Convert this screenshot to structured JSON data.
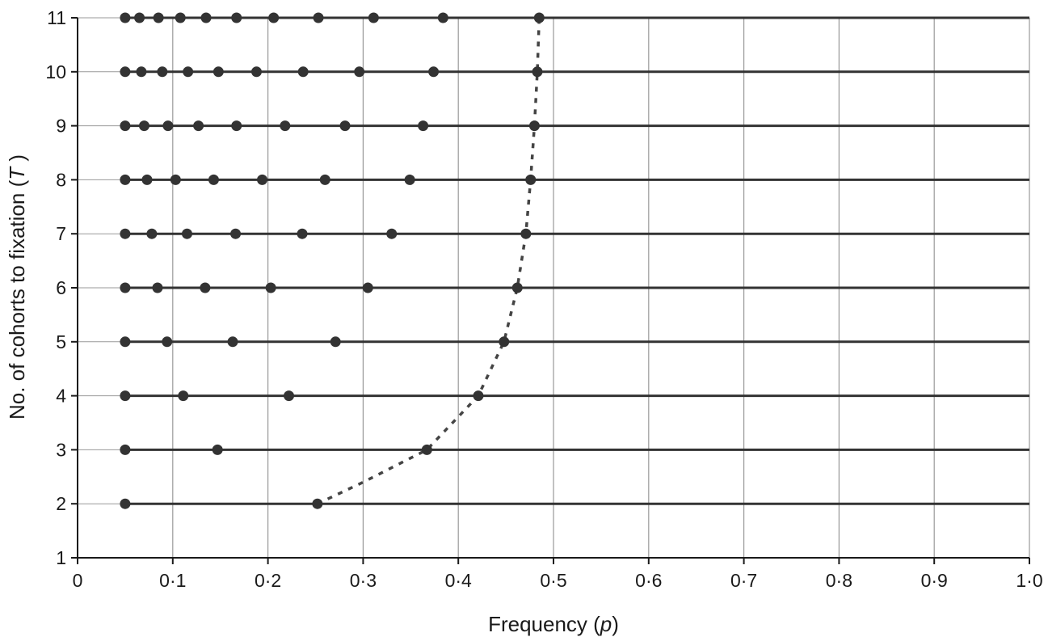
{
  "chart_data": {
    "type": "scatter",
    "xlabel": {
      "pre": "Frequency (",
      "ital": "p",
      "post": ")"
    },
    "ylabel": {
      "pre": "No. of cohorts to fixation (",
      "ital": "T",
      "post": " )"
    },
    "xlim": [
      0,
      1.0
    ],
    "ylim": [
      1,
      11
    ],
    "x_ticks": [
      0,
      0.1,
      0.2,
      0.3,
      0.4,
      0.5,
      0.6,
      0.7,
      0.8,
      0.9,
      1.0
    ],
    "x_tick_labels": [
      "0",
      "0·1",
      "0·2",
      "0·3",
      "0·4",
      "0·5",
      "0·6",
      "0·7",
      "0·8",
      "0·9",
      "1·0"
    ],
    "y_ticks": [
      1,
      2,
      3,
      4,
      5,
      6,
      7,
      8,
      9,
      10,
      11
    ],
    "y_tick_labels": [
      "1",
      "2",
      "3",
      "4",
      "5",
      "6",
      "7",
      "8",
      "9",
      "10",
      "11"
    ],
    "grid": "vertical",
    "horizontal_lines": {
      "from_x": 0.05,
      "to_x": 1.0,
      "levels": [
        2,
        3,
        4,
        5,
        6,
        7,
        8,
        9,
        10,
        11
      ]
    },
    "rows": [
      {
        "T": 2,
        "points": [
          0.05,
          0.252
        ]
      },
      {
        "T": 3,
        "points": [
          0.05,
          0.147,
          0.367
        ]
      },
      {
        "T": 4,
        "points": [
          0.05,
          0.111,
          0.222,
          0.421
        ]
      },
      {
        "T": 5,
        "points": [
          0.05,
          0.094,
          0.163,
          0.271,
          0.448
        ]
      },
      {
        "T": 6,
        "points": [
          0.05,
          0.084,
          0.134,
          0.203,
          0.305,
          0.462
        ]
      },
      {
        "T": 7,
        "points": [
          0.05,
          0.078,
          0.115,
          0.166,
          0.236,
          0.33,
          0.471
        ]
      },
      {
        "T": 8,
        "points": [
          0.05,
          0.073,
          0.103,
          0.143,
          0.194,
          0.26,
          0.349,
          0.476
        ]
      },
      {
        "T": 9,
        "points": [
          0.05,
          0.07,
          0.095,
          0.127,
          0.167,
          0.218,
          0.281,
          0.363,
          0.48
        ]
      },
      {
        "T": 10,
        "points": [
          0.05,
          0.067,
          0.089,
          0.116,
          0.148,
          0.188,
          0.237,
          0.296,
          0.374,
          0.483
        ]
      },
      {
        "T": 11,
        "points": [
          0.05,
          0.065,
          0.085,
          0.108,
          0.135,
          0.167,
          0.206,
          0.253,
          0.311,
          0.384,
          0.485
        ]
      }
    ],
    "curve": {
      "style": "dotted",
      "points": [
        [
          0.252,
          2
        ],
        [
          0.3,
          2.4
        ],
        [
          0.367,
          3
        ],
        [
          0.421,
          4
        ],
        [
          0.448,
          5
        ],
        [
          0.462,
          6
        ],
        [
          0.471,
          7
        ],
        [
          0.476,
          8
        ],
        [
          0.48,
          9
        ],
        [
          0.483,
          10
        ],
        [
          0.485,
          11
        ]
      ]
    },
    "colors": {
      "points": "#333333",
      "lines": "#333333",
      "grid": "#999999",
      "axis": "#1a1a1a",
      "curve": "#444444"
    }
  }
}
